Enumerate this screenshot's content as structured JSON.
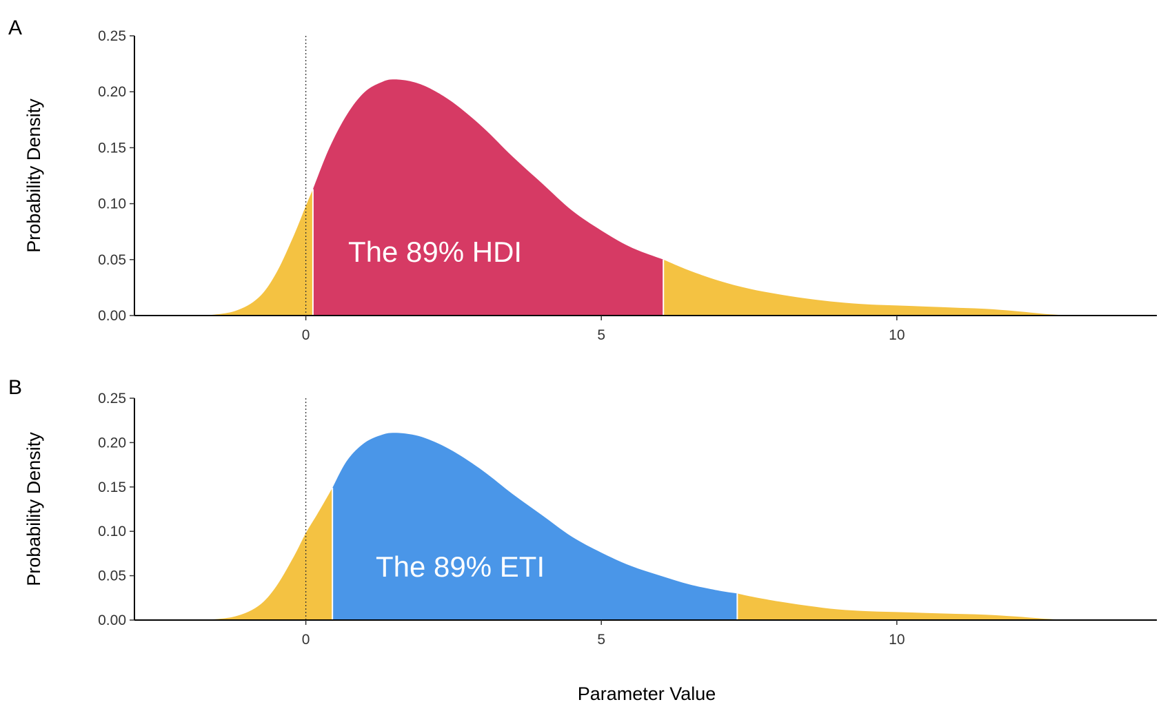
{
  "chart_data": [
    {
      "type": "area",
      "panel_label": "A",
      "annotation": "The 89% HDI",
      "ylabel": "Probability Density",
      "xlabel": "",
      "xlim": [
        -2.9,
        14.4
      ],
      "ylim": [
        0,
        0.25
      ],
      "x_ticks": [
        0,
        5,
        10
      ],
      "x_tick_labels": [
        "0",
        "5",
        "10"
      ],
      "y_ticks": [
        0,
        0.05,
        0.1,
        0.15,
        0.2,
        0.25
      ],
      "y_tick_labels": [
        "0.00",
        "0.05",
        "0.10",
        "0.15",
        "0.20",
        "0.25"
      ],
      "reference_line_x": 0,
      "interval": [
        0.12,
        6.05
      ],
      "interval_color": "#d63a64",
      "tail_color": "#f4c242",
      "density": {
        "x": [
          -1.7,
          -1.2,
          -0.8,
          -0.5,
          -0.2,
          0,
          0.12,
          0.4,
          0.7,
          1.0,
          1.3,
          1.5,
          1.8,
          2.1,
          2.5,
          3.0,
          3.5,
          4.0,
          4.5,
          5.0,
          5.5,
          6.05,
          6.5,
          7.0,
          7.5,
          8.0,
          8.5,
          9.0,
          9.5,
          10.0,
          10.5,
          11.0,
          11.5,
          12.0,
          12.5,
          12.9
        ],
        "y": [
          0.0,
          0.004,
          0.016,
          0.038,
          0.072,
          0.098,
          0.113,
          0.15,
          0.18,
          0.2,
          0.209,
          0.211,
          0.209,
          0.203,
          0.19,
          0.168,
          0.142,
          0.118,
          0.094,
          0.076,
          0.061,
          0.05,
          0.04,
          0.031,
          0.024,
          0.019,
          0.015,
          0.012,
          0.01,
          0.009,
          0.008,
          0.007,
          0.006,
          0.004,
          0.0015,
          0.0
        ]
      }
    },
    {
      "type": "area",
      "panel_label": "B",
      "annotation": "The 89% ETI",
      "ylabel": "Probability Density",
      "xlabel": "Parameter Value",
      "xlim": [
        -2.9,
        14.4
      ],
      "ylim": [
        0,
        0.25
      ],
      "x_ticks": [
        0,
        5,
        10
      ],
      "x_tick_labels": [
        "0",
        "5",
        "10"
      ],
      "y_ticks": [
        0,
        0.05,
        0.1,
        0.15,
        0.2,
        0.25
      ],
      "y_tick_labels": [
        "0.00",
        "0.05",
        "0.10",
        "0.15",
        "0.20",
        "0.25"
      ],
      "reference_line_x": 0,
      "interval": [
        0.45,
        7.3
      ],
      "interval_color": "#4a96e8",
      "tail_color": "#f4c242",
      "density": {
        "x": [
          -1.7,
          -1.2,
          -0.8,
          -0.5,
          -0.2,
          0,
          0.2,
          0.45,
          0.7,
          1.0,
          1.3,
          1.5,
          1.8,
          2.1,
          2.5,
          3.0,
          3.5,
          4.0,
          4.5,
          5.0,
          5.5,
          6.0,
          6.5,
          7.0,
          7.3,
          7.5,
          8.0,
          8.5,
          9.0,
          9.5,
          10.0,
          10.5,
          11.0,
          11.5,
          12.0,
          12.5,
          12.9
        ],
        "y": [
          0.0,
          0.004,
          0.016,
          0.038,
          0.072,
          0.098,
          0.12,
          0.149,
          0.18,
          0.2,
          0.209,
          0.211,
          0.209,
          0.203,
          0.19,
          0.168,
          0.142,
          0.118,
          0.094,
          0.076,
          0.061,
          0.05,
          0.04,
          0.033,
          0.03,
          0.027,
          0.021,
          0.016,
          0.012,
          0.01,
          0.009,
          0.008,
          0.007,
          0.006,
          0.004,
          0.0015,
          0.0
        ]
      }
    }
  ]
}
